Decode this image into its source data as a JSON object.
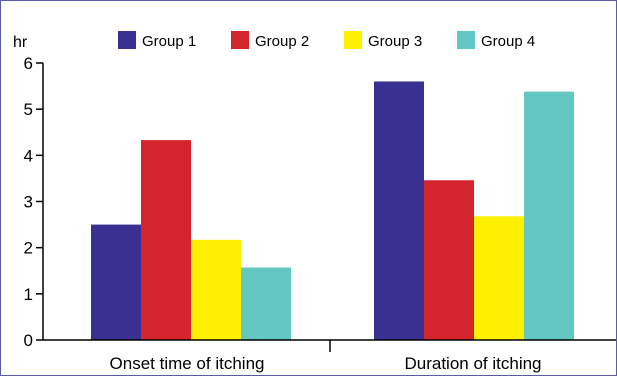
{
  "chart_data": {
    "type": "bar",
    "categories": [
      "Onset time of itching",
      "Duration of itching"
    ],
    "series": [
      {
        "name": "Group 1",
        "color": "#3a3091",
        "values": [
          2.5,
          5.6
        ]
      },
      {
        "name": "Group 2",
        "color": "#d4252c",
        "values": [
          4.33,
          3.46
        ]
      },
      {
        "name": "Group 3",
        "color": "#ffef00",
        "values": [
          2.17,
          2.68
        ]
      },
      {
        "name": "Group 4",
        "color": "#63c8c1",
        "values": [
          1.57,
          5.38
        ]
      }
    ],
    "ylabel": "hr",
    "ylim": [
      0,
      6
    ],
    "yticks": [
      0,
      1,
      2,
      3,
      4,
      5,
      6
    ],
    "legend": "top",
    "grid": false
  }
}
